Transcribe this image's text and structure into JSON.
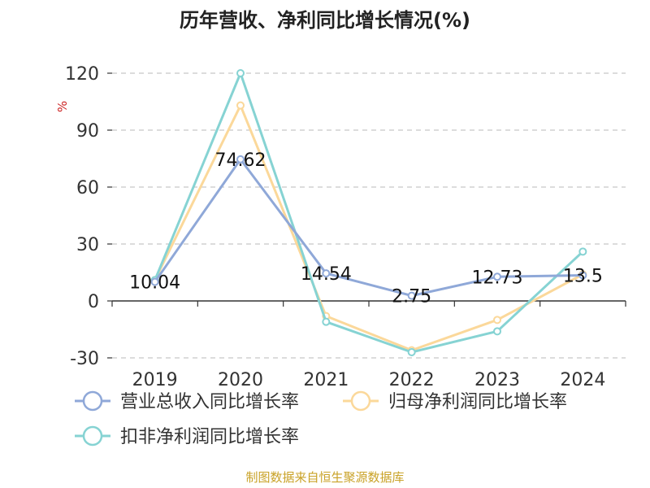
{
  "chart_data": {
    "type": "line",
    "title": "历年营收、净利同比增长情况(%)",
    "ylabel": "%",
    "categories": [
      "2019",
      "2020",
      "2021",
      "2022",
      "2023",
      "2024"
    ],
    "ylim": [
      -30,
      120
    ],
    "yticks": [
      -30,
      0,
      30,
      60,
      90,
      120
    ],
    "grid": true,
    "legend_position": "bottom-left",
    "series": [
      {
        "name": "营业总收入同比增长率",
        "color": "#8fa8d8",
        "values": [
          10.04,
          74.62,
          14.54,
          2.75,
          12.73,
          13.5
        ],
        "labels": [
          "10.04",
          "74.62",
          "14.54",
          "2.75",
          "12.73",
          "13.5"
        ]
      },
      {
        "name": "归母净利润同比增长率",
        "color": "#fbd89a",
        "values": [
          11,
          103,
          -8,
          -26,
          -10,
          14
        ]
      },
      {
        "name": "扣非净利润同比增长率",
        "color": "#86d3d3",
        "values": [
          11,
          120,
          -11,
          -27,
          -16,
          26
        ]
      }
    ]
  },
  "footer": "制图数据来自恒生聚源数据库"
}
